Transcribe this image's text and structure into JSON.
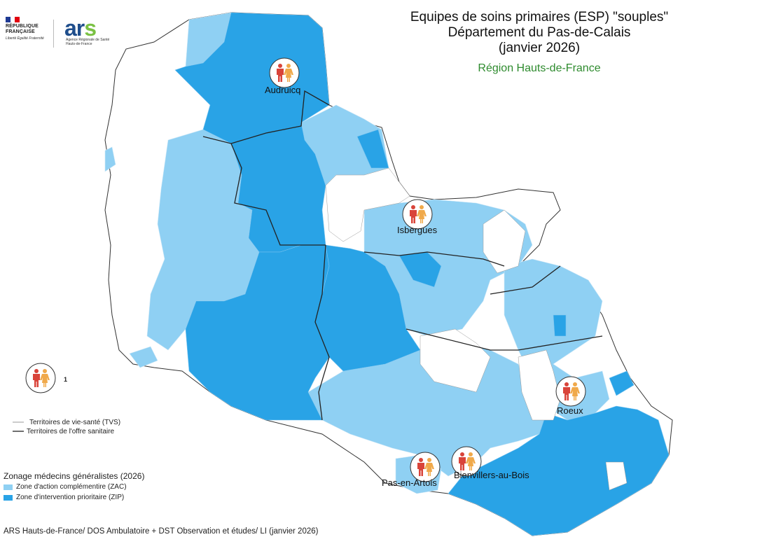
{
  "title": {
    "line1": "Equipes de soins primaires (ESP) \"souples\"",
    "line2": "Département du Pas-de-Calais",
    "line3": "(janvier 2026)"
  },
  "region_label": "Région Hauts-de-France",
  "logos": {
    "republique": "RÉPUBLIQUE FRANÇAISE",
    "motto": "Liberté Égalité Fraternité",
    "ars_word": "ars",
    "ars_sub": "Agence Régionale de Santé Hauts-de-France"
  },
  "esp_sites": [
    {
      "name": "Audruicq",
      "icon": "care-team-icon"
    },
    {
      "name": "Isbergues",
      "icon": "care-team-icon"
    },
    {
      "name": "Roeux",
      "icon": "care-team-icon"
    },
    {
      "name": "Pas-en-Artois",
      "icon": "care-team-icon"
    },
    {
      "name": "Bienvillers-au-Bois",
      "icon": "care-team-icon"
    }
  ],
  "legend": {
    "esp_count": "1",
    "tvs": "Territoires de vie-santé (TVS)",
    "tos": "Territoires de l'offre sanitaire",
    "zoning_title": "Zonage médecins généralistes (2026)",
    "zones": [
      {
        "label": "Zone d'action complémentire (ZAC)",
        "color": "#8fd0f3"
      },
      {
        "label": "Zone d'intervention prioritaire (ZIP)",
        "color": "#29a3e6"
      }
    ]
  },
  "colors": {
    "zac": "#8fd0f3",
    "zip": "#29a3e6",
    "figure_red": "#d9443a",
    "figure_orange": "#f0a94a",
    "region_green": "#2e8b2e"
  },
  "source": "ARS Hauts-de-France/ DOS Ambulatoire + DST Observation et études/ LI (janvier 2026)"
}
